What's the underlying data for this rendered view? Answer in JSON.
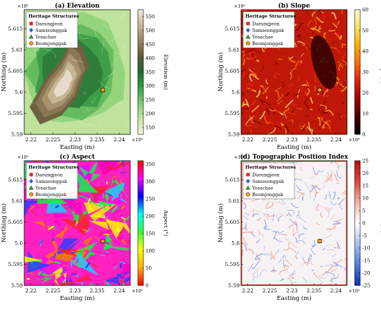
{
  "shared": {
    "legend_title": "Heritage Structures",
    "legend": [
      {
        "label": "Daeungjeon",
        "marker": "square",
        "color": "#d62728"
      },
      {
        "label": "Samseonggak",
        "marker": "diamond",
        "color": "#1f5fd6"
      },
      {
        "label": "Yosachae",
        "marker": "triangle",
        "color": "#2ca02c"
      },
      {
        "label": "Beomjonggak",
        "marker": "circle",
        "color": "#f39c12"
      }
    ],
    "exp_x": "×10⁵",
    "exp_y": "×10⁵"
  },
  "chart_data": [
    {
      "id": "a",
      "type": "heatmap",
      "title": "(a) Elevation",
      "xlabel": "Easting (m)",
      "ylabel": "Northing (m)",
      "xticks": [
        "2.22",
        "2.225",
        "2.23",
        "2.235",
        "2.24"
      ],
      "yticks": [
        "5.59",
        "5.595",
        "5.6",
        "5.605",
        "5.61",
        "5.615"
      ],
      "xlim": [
        2.2185,
        2.2425
      ],
      "ylim": [
        5.59,
        5.6195
      ],
      "colorbar": {
        "label": "Elevation (m)",
        "ticks": [
          "150",
          "200",
          "250",
          "300",
          "350",
          "400",
          "450",
          "500",
          "550"
        ],
        "range": [
          125,
          575
        ],
        "colors": [
          "#f4f9d9",
          "#c9e6a1",
          "#7fcc70",
          "#36a14a",
          "#1f6b2e",
          "#5e5a39",
          "#9b8560",
          "#c9b696",
          "#efe9df"
        ]
      },
      "markers": [
        {
          "x": 2.2363,
          "y": 5.6005
        }
      ]
    },
    {
      "id": "b",
      "type": "heatmap",
      "title": "(b) Slope",
      "xlabel": "Easting (m)",
      "ylabel": "Northing (m)",
      "xticks": [
        "2.22",
        "2.225",
        "2.23",
        "2.235",
        "2.24"
      ],
      "yticks": [
        "5.59",
        "5.595",
        "5.6",
        "5.605",
        "5.61",
        "5.615"
      ],
      "xlim": [
        2.2185,
        2.2425
      ],
      "ylim": [
        5.59,
        5.6195
      ],
      "colorbar": {
        "label": "Slope (°)",
        "ticks": [
          "0",
          "10",
          "20",
          "30",
          "40",
          "50",
          "60"
        ],
        "range": [
          0,
          60
        ],
        "colors": [
          "#000000",
          "#4a0000",
          "#a00000",
          "#e0220a",
          "#ff6a00",
          "#ffb000",
          "#ffe060",
          "#ffffcc"
        ]
      },
      "markers": [
        {
          "x": 2.2363,
          "y": 5.6005
        }
      ]
    },
    {
      "id": "c",
      "type": "heatmap",
      "title": "(c) Aspect",
      "xlabel": "Easting (m)",
      "ylabel": "Northing (m)",
      "xticks": [
        "2.22",
        "2.225",
        "2.23",
        "2.235",
        "2.24"
      ],
      "yticks": [
        "5.59",
        "5.595",
        "5.6",
        "5.605",
        "5.61",
        "5.615"
      ],
      "xlim": [
        2.2185,
        2.2425
      ],
      "ylim": [
        5.59,
        5.6195
      ],
      "colorbar": {
        "label": "Aspect (°)",
        "ticks": [
          "0",
          "50",
          "100",
          "150",
          "200",
          "250",
          "300",
          "350"
        ],
        "range": [
          0,
          360
        ],
        "colors": [
          "#ff0000",
          "#ffb000",
          "#ffff00",
          "#30ff30",
          "#00ffff",
          "#0000ff",
          "#ff00ff",
          "#ff0000"
        ]
      },
      "markers": [
        {
          "x": 2.2363,
          "y": 5.6005
        }
      ]
    },
    {
      "id": "d",
      "type": "heatmap",
      "title": "(d) Topographic Position Index",
      "xlabel": "Easting (m)",
      "ylabel": "Northing (m)",
      "xticks": [
        "2.22",
        "2.225",
        "2.23",
        "2.235",
        "2.24"
      ],
      "yticks": [
        "5.59",
        "5.595",
        "5.6",
        "5.605",
        "5.61",
        "5.615"
      ],
      "xlim": [
        2.2185,
        2.2425
      ],
      "ylim": [
        5.59,
        5.6195
      ],
      "colorbar": {
        "label": "TPI (m)",
        "ticks": [
          "-25",
          "-20",
          "-15",
          "-10",
          "-5",
          "0",
          "5",
          "10",
          "15",
          "20",
          "25"
        ],
        "range": [
          -25,
          25
        ],
        "colors": [
          "#0b2fb0",
          "#4f7de0",
          "#aac3f0",
          "#ffffff",
          "#f5b3a6",
          "#e04a35",
          "#b30f0f"
        ]
      },
      "markers": [
        {
          "x": 2.2363,
          "y": 5.6005
        }
      ]
    }
  ]
}
